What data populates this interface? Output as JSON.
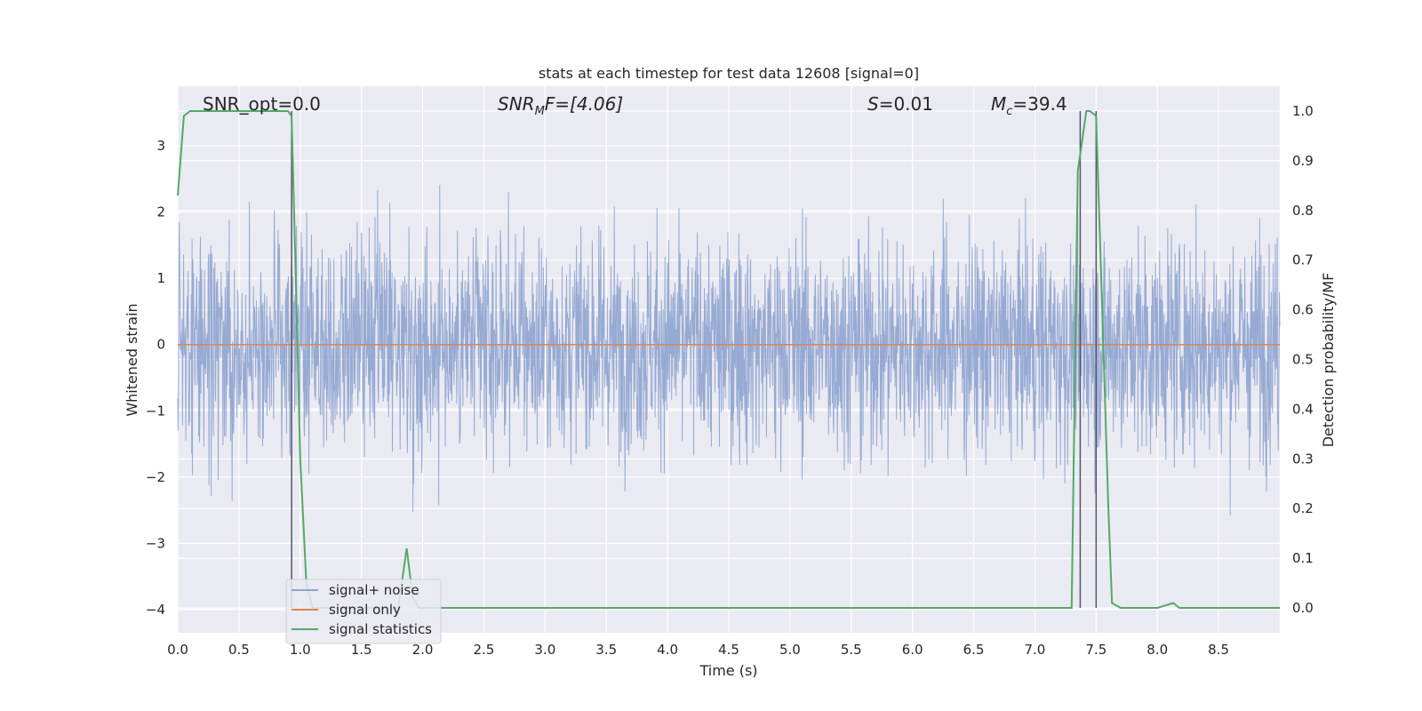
{
  "chart_data": {
    "type": "line",
    "title": "stats at each timestep for test data 12608 [signal=0]",
    "xlabel": "Time (s)",
    "ylabel": "Whitened strain",
    "y2label": "Detection probability/MF",
    "xlim": [
      0,
      9.0
    ],
    "ylim": [
      -4.35,
      3.9
    ],
    "y2lim": [
      -0.05,
      1.05
    ],
    "x_ticks": [
      "0.0",
      "0.5",
      "1.0",
      "1.5",
      "2.0",
      "2.5",
      "3.0",
      "3.5",
      "4.0",
      "4.5",
      "5.0",
      "5.5",
      "6.0",
      "6.5",
      "7.0",
      "7.5",
      "8.0",
      "8.5"
    ],
    "y_ticks": [
      "3",
      "2",
      "1",
      "0",
      "−1",
      "−2",
      "−3",
      "−4"
    ],
    "y2_ticks": [
      "1.0",
      "0.9",
      "0.8",
      "0.7",
      "0.6",
      "0.5",
      "0.4",
      "0.3",
      "0.2",
      "0.1",
      "0.0"
    ],
    "grid": true,
    "legend_position": "lower-left",
    "annotations": {
      "snr_opt": "SNR_opt=0.0",
      "snr_mf_label": "SNR",
      "snr_mf_sub": "M",
      "snr_mf_rest": "F=[4.06]",
      "s_label": "S",
      "s_rest": "=0.01",
      "mc_label": "M",
      "mc_sub": "c",
      "mc_rest": "=39.4"
    },
    "series": [
      {
        "name": "signal+ noise",
        "color": "#8ea3cf",
        "axis": "left",
        "description_points": "dense noise, envelope approx ±2.5 with spikes to ±3.5"
      },
      {
        "name": "signal only",
        "color": "#dd8452",
        "axis": "left",
        "x": [
          0,
          9.0
        ],
        "y": [
          0,
          0
        ]
      },
      {
        "name": "signal statistics",
        "color": "#55a868",
        "axis": "right",
        "x": [
          0.0,
          0.05,
          0.1,
          0.15,
          0.2,
          0.3,
          0.4,
          0.5,
          0.6,
          0.7,
          0.8,
          0.85,
          0.9,
          0.93,
          0.96,
          1.0,
          1.05,
          1.1,
          1.3,
          1.5,
          1.7,
          1.8,
          1.87,
          1.92,
          1.97,
          2.02,
          2.1,
          3.0,
          4.0,
          5.0,
          6.0,
          7.0,
          7.3,
          7.35,
          7.38,
          7.42,
          7.45,
          7.5,
          7.55,
          7.6,
          7.63,
          7.7,
          7.8,
          8.0,
          8.13,
          8.18,
          8.3,
          8.6,
          8.8,
          9.0
        ],
        "y": [
          0.83,
          0.99,
          1.0,
          1.0,
          1.0,
          1.0,
          1.0,
          1.0,
          1.0,
          1.0,
          1.0,
          1.0,
          1.0,
          0.99,
          0.7,
          0.3,
          0.05,
          0.0,
          0.0,
          0.0,
          0.0,
          0.0,
          0.12,
          0.02,
          0.0,
          0.0,
          0.0,
          0.0,
          0.0,
          0.0,
          0.0,
          0.0,
          0.0,
          0.88,
          0.93,
          1.0,
          1.0,
          0.99,
          0.6,
          0.2,
          0.01,
          0.0,
          0.0,
          0.0,
          0.01,
          0.0,
          0.0,
          0.0,
          0.0,
          0.0
        ]
      }
    ],
    "vlines": [
      0.93,
      7.37,
      7.5
    ]
  }
}
